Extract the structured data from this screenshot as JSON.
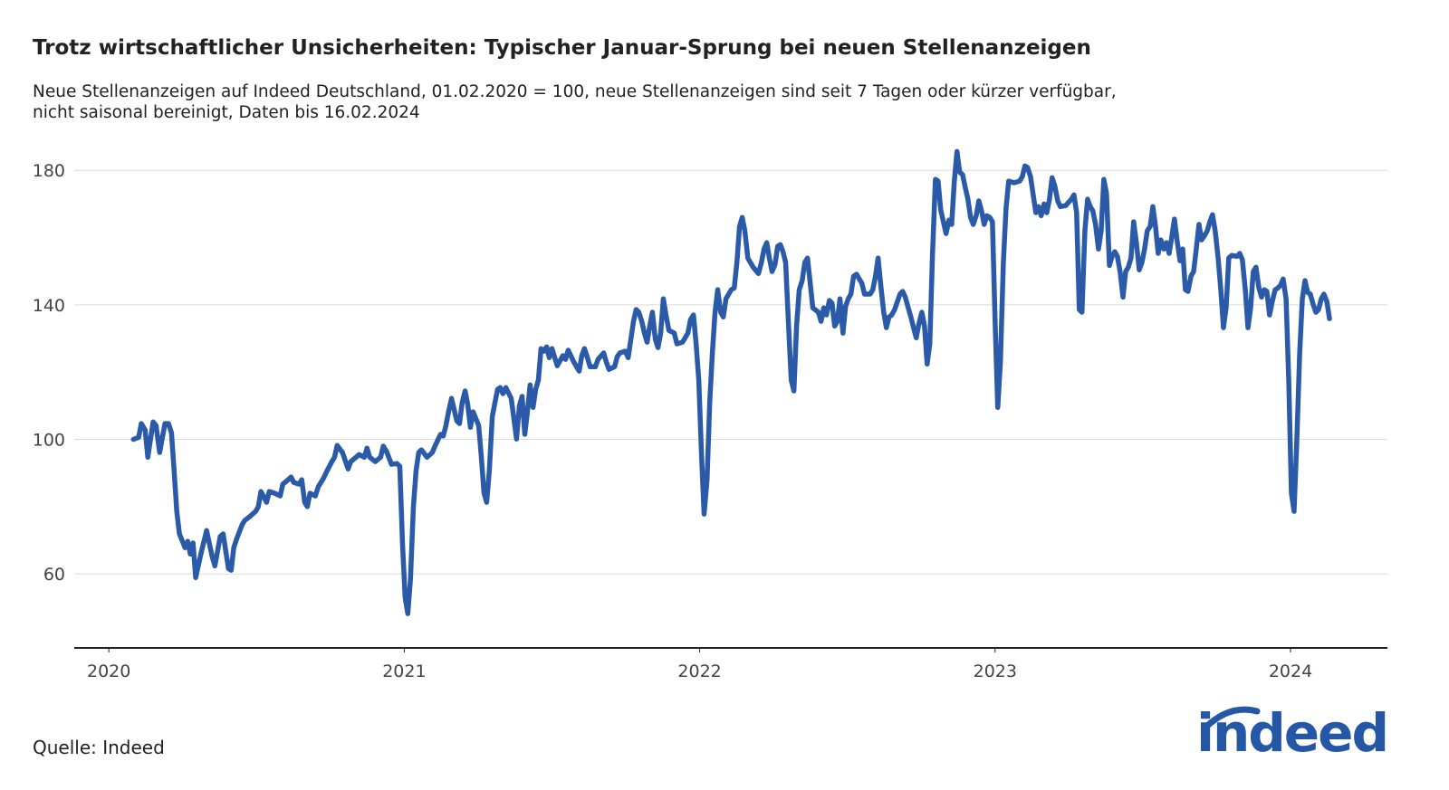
{
  "chart_data": {
    "type": "line",
    "title": "Trotz wirtschaftlicher Unsicherheiten: Typischer Januar-Sprung bei neuen Stellenanzeigen",
    "subtitle": [
      "Neue Stellenanzeigen auf Indeed Deutschland, 01.02.2020 = 100, neue Stellenanzeigen sind seit 7 Tagen oder kürzer verfügbar,",
      "nicht saisonal bereinigt, Daten bis 16.02.2024"
    ],
    "source": "Quelle: Indeed",
    "logo": "indeed",
    "xlim": [
      2019.883,
      2024.328
    ],
    "xticks": [
      2020,
      2021,
      2022,
      2023,
      2024
    ],
    "ylim": [
      38,
      192
    ],
    "yticks": [
      60,
      100,
      140,
      180
    ],
    "grid": true,
    "x": [
      2020.083,
      2020.101,
      2020.11,
      2020.123,
      2020.132,
      2020.15,
      2020.16,
      2020.172,
      2020.19,
      2020.202,
      2020.212,
      2020.221,
      2020.23,
      2020.239,
      2020.258,
      2020.267,
      2020.276,
      2020.285,
      2020.294,
      2020.313,
      2020.331,
      2020.35,
      2020.359,
      2020.377,
      2020.387,
      2020.405,
      2020.414,
      2020.423,
      2020.433,
      2020.451,
      2020.46,
      2020.479,
      2020.497,
      2020.506,
      2020.515,
      2020.534,
      2020.543,
      2020.561,
      2020.58,
      2020.589,
      2020.607,
      2020.617,
      2020.626,
      2020.644,
      2020.653,
      2020.663,
      2020.672,
      2020.681,
      2020.699,
      2020.709,
      2020.727,
      2020.736,
      2020.755,
      2020.764,
      2020.773,
      2020.791,
      2020.81,
      2020.819,
      2020.837,
      2020.847,
      2020.865,
      2020.874,
      2020.883,
      2020.902,
      2020.92,
      2020.929,
      2020.939,
      2020.957,
      2020.975,
      2020.985,
      2020.994,
      2021.003,
      2021.012,
      2021.021,
      2021.031,
      2021.04,
      2021.049,
      2021.058,
      2021.077,
      2021.095,
      2021.104,
      2021.123,
      2021.132,
      2021.141,
      2021.15,
      2021.16,
      2021.178,
      2021.187,
      2021.196,
      2021.206,
      2021.215,
      2021.224,
      2021.233,
      2021.252,
      2021.261,
      2021.27,
      2021.279,
      2021.288,
      2021.298,
      2021.307,
      2021.316,
      2021.325,
      2021.334,
      2021.344,
      2021.362,
      2021.371,
      2021.38,
      2021.39,
      2021.399,
      2021.408,
      2021.417,
      2021.426,
      2021.436,
      2021.445,
      2021.454,
      2021.463,
      2021.472,
      2021.482,
      2021.491,
      2021.5,
      2021.518,
      2021.537,
      2021.546,
      2021.555,
      2021.574,
      2021.592,
      2021.601,
      2021.61,
      2021.62,
      2021.629,
      2021.647,
      2021.656,
      2021.675,
      2021.684,
      2021.693,
      2021.712,
      2021.721,
      2021.73,
      2021.748,
      2021.758,
      2021.767,
      2021.776,
      2021.785,
      2021.794,
      2021.804,
      2021.813,
      2021.822,
      2021.831,
      2021.84,
      2021.85,
      2021.859,
      2021.868,
      2021.877,
      2021.887,
      2021.896,
      2021.914,
      2021.923,
      2021.942,
      2021.96,
      2021.969,
      2021.979,
      2021.988,
      2021.997,
      2022.006,
      2022.015,
      2022.025,
      2022.034,
      2022.043,
      2022.052,
      2022.061,
      2022.071,
      2022.08,
      2022.089,
      2022.107,
      2022.117,
      2022.126,
      2022.135,
      2022.144,
      2022.153,
      2022.163,
      2022.181,
      2022.199,
      2022.209,
      2022.218,
      2022.227,
      2022.236,
      2022.245,
      2022.255,
      2022.264,
      2022.273,
      2022.282,
      2022.291,
      2022.301,
      2022.31,
      2022.319,
      2022.328,
      2022.337,
      2022.347,
      2022.356,
      2022.365,
      2022.374,
      2022.383,
      2022.402,
      2022.411,
      2022.42,
      2022.429,
      2022.439,
      2022.448,
      2022.457,
      2022.466,
      2022.475,
      2022.485,
      2022.494,
      2022.503,
      2022.512,
      2022.521,
      2022.531,
      2022.549,
      2022.558,
      2022.577,
      2022.586,
      2022.595,
      2022.604,
      2022.613,
      2022.623,
      2022.632,
      2022.641,
      2022.65,
      2022.66,
      2022.678,
      2022.687,
      2022.696,
      2022.706,
      2022.715,
      2022.724,
      2022.733,
      2022.742,
      2022.752,
      2022.761,
      2022.77,
      2022.779,
      2022.788,
      2022.798,
      2022.807,
      2022.816,
      2022.825,
      2022.834,
      2022.844,
      2022.853,
      2022.862,
      2022.871,
      2022.88,
      2022.89,
      2022.899,
      2022.908,
      2022.917,
      2022.926,
      2022.936,
      2022.945,
      2022.954,
      2022.963,
      2022.972,
      2022.982,
      2022.991,
      2023.0,
      2023.009,
      2023.018,
      2023.028,
      2023.037,
      2023.046,
      2023.064,
      2023.083,
      2023.092,
      2023.101,
      2023.11,
      2023.12,
      2023.129,
      2023.138,
      2023.147,
      2023.156,
      2023.166,
      2023.175,
      2023.184,
      2023.193,
      2023.202,
      2023.212,
      2023.221,
      2023.239,
      2023.258,
      2023.267,
      2023.276,
      2023.285,
      2023.294,
      2023.304,
      2023.313,
      2023.322,
      2023.331,
      2023.34,
      2023.35,
      2023.359,
      2023.368,
      2023.377,
      2023.387,
      2023.396,
      2023.405,
      2023.414,
      2023.423,
      2023.433,
      2023.442,
      2023.451,
      2023.46,
      2023.469,
      2023.479,
      2023.488,
      2023.497,
      2023.506,
      2023.515,
      2023.525,
      2023.534,
      2023.543,
      2023.552,
      2023.561,
      2023.571,
      2023.58,
      2023.589,
      2023.598,
      2023.607,
      2023.617,
      2023.626,
      2023.635,
      2023.644,
      2023.653,
      2023.663,
      2023.672,
      2023.681,
      2023.69,
      2023.699,
      2023.709,
      2023.718,
      2023.727,
      2023.736,
      2023.745,
      2023.755,
      2023.764,
      2023.773,
      2023.782,
      2023.791,
      2023.801,
      2023.819,
      2023.828,
      2023.837,
      2023.847,
      2023.856,
      2023.865,
      2023.874,
      2023.883,
      2023.893,
      2023.902,
      2023.911,
      2023.92,
      2023.929,
      2023.939,
      2023.948,
      2023.957,
      2023.966,
      2023.975,
      2023.985,
      2023.994,
      2024.003,
      2024.012,
      2024.021,
      2024.031,
      2024.04,
      2024.049,
      2024.058,
      2024.067,
      2024.077,
      2024.086,
      2024.095,
      2024.104,
      2024.113,
      2024.123,
      2024.132
    ],
    "series": [
      {
        "color": "#2a5aa8",
        "values": [
          100,
          100.6,
          104.7,
          102.8,
          94.7,
          105.2,
          104.1,
          96.1,
          104.7,
          104.7,
          102,
          90.7,
          78.6,
          71.9,
          67.8,
          69.7,
          65.9,
          69.2,
          58.9,
          66.5,
          72.9,
          65.1,
          62.4,
          71.1,
          71.9,
          61.6,
          61.1,
          67.8,
          70.5,
          74.6,
          75.9,
          77.2,
          78.6,
          80,
          84.5,
          81.3,
          84.5,
          84,
          83.2,
          86.7,
          88,
          88.8,
          87.2,
          86.7,
          88,
          81.3,
          80,
          84,
          83.2,
          85.9,
          88.5,
          90.2,
          93.4,
          94.7,
          98.2,
          96.1,
          91.2,
          93.4,
          94.7,
          95.5,
          94.7,
          97.4,
          94.7,
          93.4,
          94.7,
          98,
          96.6,
          92.6,
          92.8,
          92,
          69.2,
          53,
          48.2,
          58.4,
          80,
          90.7,
          96.1,
          96.9,
          94.7,
          96.1,
          98,
          101.5,
          101,
          104.1,
          108.2,
          112.2,
          105.5,
          104.7,
          110.9,
          114.4,
          110.3,
          103.6,
          108.2,
          104.1,
          94.7,
          84,
          81.3,
          90.7,
          106.8,
          110.9,
          114.9,
          115.4,
          113.6,
          115.4,
          112.2,
          106.3,
          100.1,
          110.1,
          112.8,
          101.5,
          108.2,
          116.2,
          109.5,
          114.9,
          117.6,
          127,
          126.2,
          127.5,
          124.3,
          127,
          121.9,
          124.9,
          123.8,
          126.5,
          123,
          120.3,
          124.9,
          127,
          124.3,
          121.6,
          121.6,
          123.8,
          125.7,
          123,
          120.8,
          121.6,
          124.6,
          125.7,
          126.2,
          124.3,
          129.7,
          135.1,
          138.6,
          137.8,
          135.1,
          131.6,
          128.9,
          133.7,
          137.8,
          129.7,
          127.3,
          131.6,
          141.8,
          136.4,
          132.4,
          131.6,
          128.4,
          128.9,
          131.6,
          135.6,
          137,
          128.4,
          117.6,
          96.1,
          77.8,
          88,
          110.9,
          125.7,
          137.8,
          144.5,
          137.8,
          136.4,
          141.8,
          144.5,
          145,
          152.6,
          163.3,
          166,
          162,
          153.9,
          151.2,
          149.3,
          152.6,
          156.6,
          158.5,
          153.9,
          149.9,
          152,
          157.4,
          157.9,
          155.8,
          152.6,
          133.7,
          117.6,
          114.4,
          133.7,
          144.5,
          147.2,
          152.6,
          153.9,
          146.6,
          139.1,
          137.8,
          135.1,
          139.1,
          137,
          141.3,
          140.5,
          133.7,
          135.1,
          141.8,
          131.6,
          139.6,
          141.8,
          143.2,
          148.5,
          149.1,
          146.4,
          143.2,
          143.2,
          144.5,
          148.5,
          153.9,
          145.8,
          137.8,
          133.2,
          136.4,
          137,
          138.6,
          143.2,
          144,
          142.3,
          139.1,
          136.4,
          133.2,
          130.2,
          134.3,
          137.8,
          133.7,
          122.4,
          128.4,
          154.7,
          177.3,
          176.8,
          168.2,
          164.7,
          161.2,
          165.2,
          163.9,
          176.8,
          185.6,
          179.5,
          178.7,
          174.9,
          171.4,
          166,
          163.9,
          166.5,
          170.9,
          168,
          163.9,
          166.5,
          166,
          164.7,
          135.1,
          109.5,
          123,
          152.6,
          168.7,
          176.8,
          176.3,
          176.8,
          178.1,
          181.3,
          180.8,
          178.1,
          172.7,
          167.4,
          169.2,
          166.5,
          170,
          167.4,
          171.4,
          177.8,
          175.4,
          170.9,
          169.2,
          169.5,
          171.4,
          172.7,
          167.4,
          138.6,
          137.8,
          162,
          171.4,
          169.2,
          167.9,
          163.9,
          156.6,
          162,
          177.3,
          173.2,
          151.7,
          154.4,
          155.8,
          154.4,
          149.9,
          142.3,
          149.9,
          151.2,
          153.9,
          164.7,
          157.9,
          150.4,
          152.6,
          156.6,
          162,
          163.3,
          169.2,
          163.3,
          155.3,
          159.3,
          156.6,
          158.5,
          155.3,
          160.1,
          165.5,
          158.5,
          153.1,
          156.6,
          144.5,
          144,
          148.5,
          149.9,
          156.6,
          163.9,
          159.3,
          160.6,
          162,
          164.7,
          166.8,
          162,
          153.9,
          144.5,
          133.2,
          139.1,
          153.9,
          154.7,
          154.4,
          155.3,
          153.4,
          144.5,
          133.2,
          139.1,
          149.9,
          151.2,
          145,
          142.3,
          144.5,
          144,
          137,
          141.3,
          144.5,
          145,
          145.8,
          147.7,
          141.8,
          117.6,
          84,
          78.6,
          98.8,
          125.7,
          141.8,
          147.2,
          143.7,
          143.2,
          140,
          137.8,
          138.6,
          141.8,
          143.2,
          141,
          135.9
        ]
      }
    ]
  }
}
